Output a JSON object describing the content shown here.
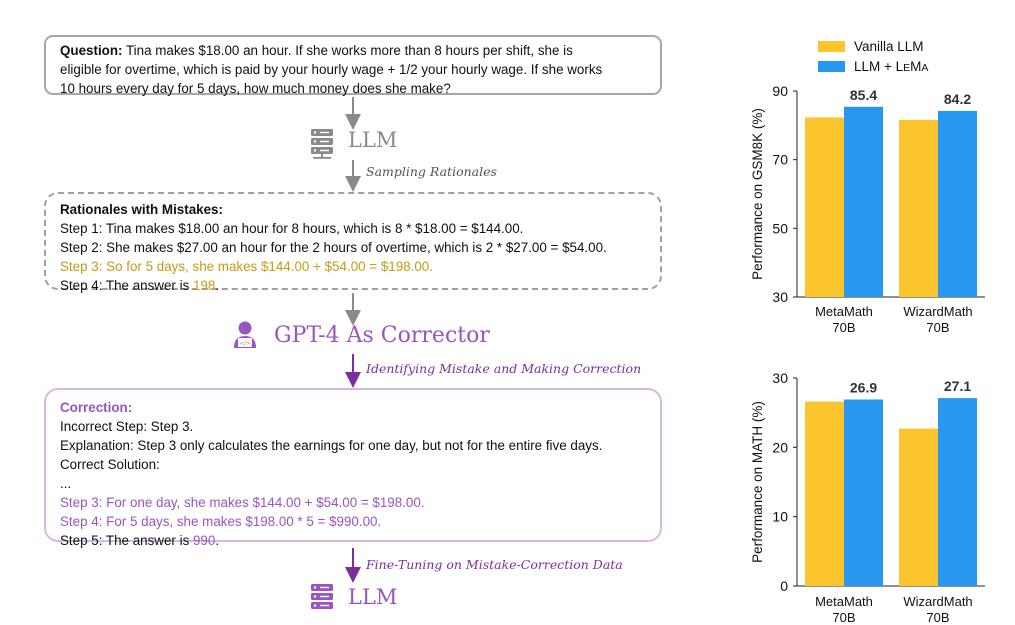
{
  "question": {
    "label": "Question:",
    "lines": [
      " Tina makes $18.00 an hour. If she works more than 8 hours per shift, she is",
      "eligible for overtime, which is paid by your hourly wage + 1/2 your hourly wage. If she works",
      "10 hours every day for 5 days, how much money does she make?"
    ]
  },
  "llm_label_top": "LLM",
  "sampling_label": "Sampling Rationales",
  "rationales": {
    "title": "Rationales with Mistakes:",
    "step1": "Step 1: Tina makes $18.00 an hour for 8 hours, which is 8 * $18.00 = $144.00.",
    "step2": "Step 2: She makes $27.00 an hour for the 2 hours of overtime, which is 2 * $27.00 = $54.00.",
    "step3": "Step 3: So for 5 days, she makes $144.00 + $54.00 = $198.00.",
    "step4_prefix": "Step 4: The answer is ",
    "step4_value": "198",
    "step4_suffix": "."
  },
  "corrector_label": "GPT-4 As Corrector",
  "identify_label": "Identifying Mistake and Making Correction",
  "correction": {
    "title": "Correction:",
    "incorrect_step": "Incorrect Step: Step 3.",
    "explanation": "Explanation: Step 3 only calculates the earnings for one day, but not for the entire five days.",
    "correct_solution": "Correct Solution:",
    "ellipsis": "...",
    "step3": "Step 3: For one day, she makes $144.00 + $54.00 = $198.00.",
    "step4": "Step 4: For 5 days, she makes $198.00 * 5 = $990.00.",
    "step5_prefix": "Step 5: The answer is ",
    "step5_value": "990",
    "step5_suffix": "."
  },
  "finetune_label": "Fine-Tuning on Mistake-Correction Data",
  "llm_label_bottom": "LLM",
  "colors": {
    "vanilla": "#fcc42d",
    "lema": "#2897f0",
    "gray": "#8a8a8a",
    "purple": "#9a55c0",
    "dark_purple": "#7a2f9c"
  },
  "legend": {
    "vanilla": "Vanilla LLM",
    "lema_prefix": "LLM + L",
    "lema_small": "E",
    "lema_mid": "M",
    "lema_end": "A"
  },
  "chart_data": [
    {
      "type": "bar",
      "ylabel": "Performance on GSM8K (%)",
      "categories": [
        "MetaMath\n70B",
        "WizardMath\n70B"
      ],
      "category_lines": [
        [
          "MetaMath",
          "70B"
        ],
        [
          "WizardMath",
          "70B"
        ]
      ],
      "series": [
        {
          "name": "Vanilla LLM",
          "values": [
            82.3,
            81.6
          ]
        },
        {
          "name": "LLM + LEMA",
          "values": [
            85.4,
            84.2
          ]
        }
      ],
      "data_labels": [
        "85.4",
        "84.2"
      ],
      "ylim": [
        30,
        90
      ],
      "yticks": [
        "30",
        "50",
        "70",
        "90"
      ],
      "ytick_values": [
        30,
        50,
        70,
        90
      ],
      "grid": false,
      "legend": "top"
    },
    {
      "type": "bar",
      "ylabel": "Performance on MATH (%)",
      "categories": [
        "MetaMath\n70B",
        "WizardMath\n70B"
      ],
      "category_lines": [
        [
          "MetaMath",
          "70B"
        ],
        [
          "WizardMath",
          "70B"
        ]
      ],
      "series": [
        {
          "name": "Vanilla LLM",
          "values": [
            26.6,
            22.7
          ]
        },
        {
          "name": "LLM + LEMA",
          "values": [
            26.9,
            27.1
          ]
        }
      ],
      "data_labels": [
        "26.9",
        "27.1"
      ],
      "ylim": [
        0,
        30
      ],
      "yticks": [
        "0",
        "10",
        "20",
        "30"
      ],
      "ytick_values": [
        0,
        10,
        20,
        30
      ],
      "grid": false,
      "legend": "top"
    }
  ]
}
